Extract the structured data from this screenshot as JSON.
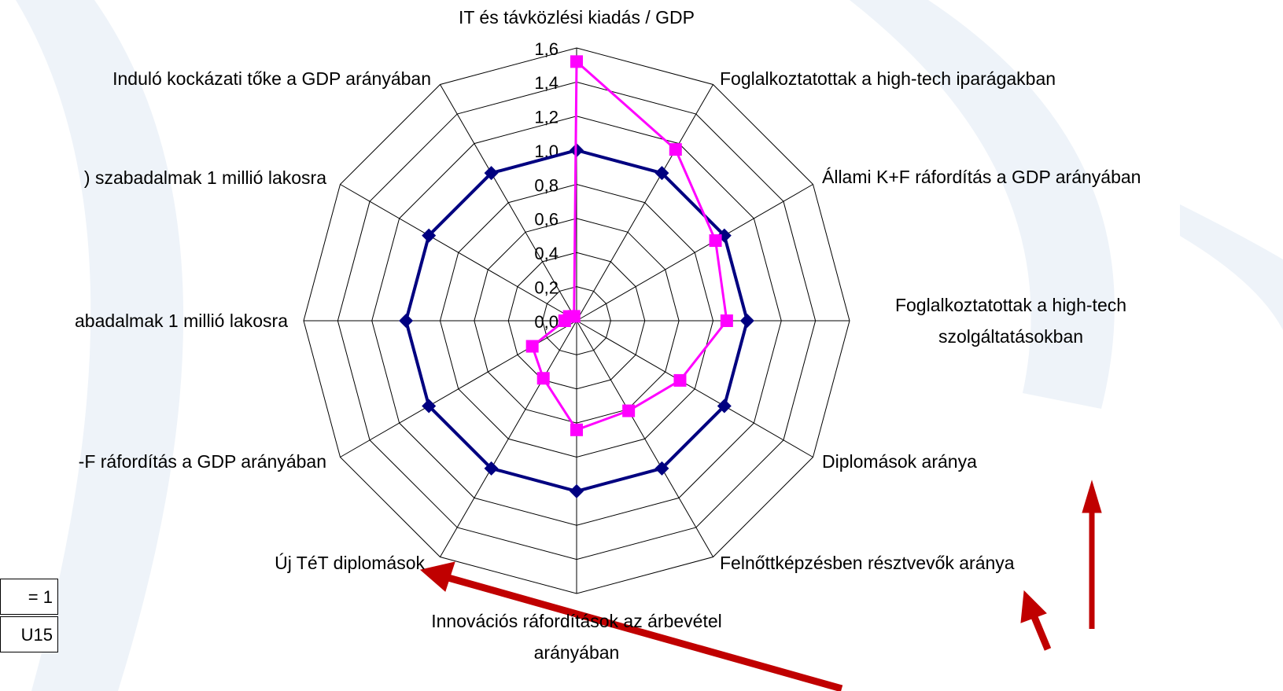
{
  "chart_data": {
    "type": "radar",
    "categories": [
      "IT és távközlési kiadás / GDP",
      "Foglalkoztatottak a high-tech iparágakban",
      "Állami K+F ráfordítás a GDP arányában",
      "Foglalkoztatottak a high-tech szolgáltatásokban",
      "Diplomások aránya",
      "Felnőttképzésben résztvevők aránya",
      "Innovációs ráfordítások az árbevétel arányában",
      "Új TéT diplomások",
      "-F ráfordítás a GDP arányában",
      "abadalmak 1 millió lakosra",
      ") szabadalmak 1 millió lakosra",
      "Induló kockázati tőke a GDP arányában"
    ],
    "series": [
      {
        "name": "= 1",
        "color": "#000080",
        "marker": "diamond",
        "values": [
          1,
          1,
          1,
          1,
          1,
          1,
          1,
          1,
          1,
          1,
          1,
          1
        ]
      },
      {
        "name": "U15",
        "color": "#ff00ff",
        "marker": "square",
        "values": [
          1.52,
          1.16,
          0.94,
          0.88,
          0.7,
          0.61,
          0.64,
          0.39,
          0.3,
          0.07,
          0.05,
          0.03
        ]
      }
    ],
    "ylim": [
      0,
      1.6
    ],
    "yticks": [
      {
        "value": 0,
        "label": "0,0"
      },
      {
        "value": 0.2,
        "label": "0,2"
      },
      {
        "value": 0.4,
        "label": "0,4"
      },
      {
        "value": 0.6,
        "label": "0,6"
      },
      {
        "value": 0.8,
        "label": "0,8"
      },
      {
        "value": 1,
        "label": "1,0"
      },
      {
        "value": 1.2,
        "label": "1,2"
      },
      {
        "value": 1.4,
        "label": "1,4"
      },
      {
        "value": 1.6,
        "label": "1,6"
      }
    ],
    "grid": true
  }
}
